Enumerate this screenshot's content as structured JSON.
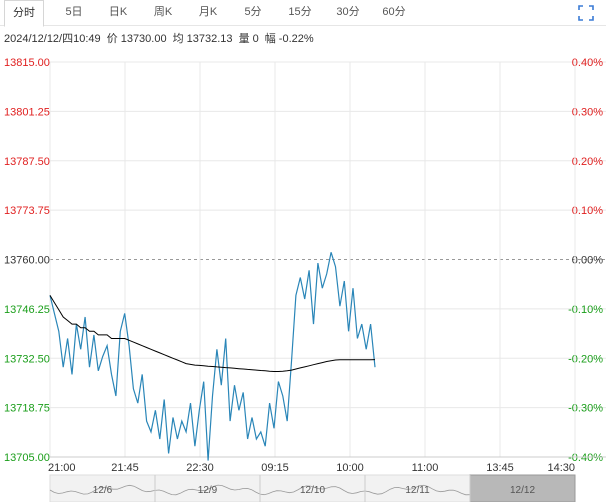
{
  "tabs": [
    {
      "label": "分时",
      "active": true
    },
    {
      "label": "5日",
      "active": false
    },
    {
      "label": "日K",
      "active": false
    },
    {
      "label": "周K",
      "active": false
    },
    {
      "label": "月K",
      "active": false
    },
    {
      "label": "5分",
      "active": false
    },
    {
      "label": "15分",
      "active": false
    },
    {
      "label": "30分",
      "active": false
    },
    {
      "label": "60分",
      "active": false
    }
  ],
  "toolbar": {
    "expand_icon": "expand-icon"
  },
  "info": {
    "datetime": "2024/12/12/四10:49",
    "price_label": "价",
    "price": "13730.00",
    "avg_label": "均",
    "avg": "13732.13",
    "volume_label": "量",
    "volume": "0",
    "change_label": "幅",
    "change": "-0.22%"
  },
  "colors": {
    "up": "#e02020",
    "down": "#1a9e1a",
    "neutral": "#333333",
    "price_line": "#2a86b8",
    "avg_line": "#000000"
  },
  "chart_data": {
    "type": "line",
    "y_left_ticks": [
      "13815.00",
      "13801.25",
      "13787.50",
      "13773.75",
      "13760.00",
      "13746.25",
      "13732.50",
      "13718.75",
      "13705.00"
    ],
    "y_right_ticks": [
      "0.40%",
      "0.30%",
      "0.20%",
      "0.10%",
      "0.00%",
      "-0.10%",
      "-0.20%",
      "-0.30%",
      "-0.40%"
    ],
    "ylim": [
      13705.0,
      13815.0
    ],
    "prev_close": 13760.0,
    "x_ticks": [
      "21:00",
      "21:45",
      "22:30",
      "09:15",
      "10:00",
      "11:00",
      "13:45",
      "14:30"
    ],
    "x_count": 75,
    "price": [
      13750,
      13745,
      13740,
      13730,
      13738,
      13728,
      13742,
      13735,
      13744,
      13730,
      13739,
      13729,
      13733,
      13736,
      13728,
      13722,
      13740,
      13745,
      13736,
      13724,
      13720,
      13728,
      13715,
      13712,
      13718,
      13710,
      13721,
      13706,
      13716,
      13710,
      13715,
      13712,
      13720,
      13708,
      13718,
      13726,
      13704,
      13722,
      13735,
      13725,
      13738,
      13715,
      13725,
      13718,
      13723,
      13710,
      13716,
      13710,
      13712,
      13708,
      13720,
      13713,
      13726,
      13722,
      13715,
      13732,
      13750,
      13755,
      13749,
      13757,
      13742,
      13759,
      13752,
      13756,
      13762,
      13758,
      13747,
      13754,
      13740,
      13752,
      13738,
      13742,
      13735,
      13742,
      13730
    ],
    "average": [
      13750,
      13748,
      13746,
      13744,
      13743,
      13742,
      13742,
      13741,
      13741,
      13740,
      13740,
      13739,
      13739,
      13739,
      13738,
      13738,
      13738,
      13738,
      13737.5,
      13737,
      13736.5,
      13736,
      13735.5,
      13735,
      13734.5,
      13734,
      13733.5,
      13733,
      13732.5,
      13732,
      13731.5,
      13731,
      13730.8,
      13730.6,
      13730.5,
      13730.4,
      13730.3,
      13730.2,
      13730.1,
      13730,
      13729.9,
      13729.8,
      13729.7,
      13729.6,
      13729.5,
      13729.4,
      13729.3,
      13729.2,
      13729.1,
      13729,
      13728.9,
      13728.8,
      13728.8,
      13728.9,
      13729,
      13729.2,
      13729.5,
      13729.8,
      13730.1,
      13730.4,
      13730.7,
      13731,
      13731.3,
      13731.6,
      13731.8,
      13732,
      13732.1,
      13732.1,
      13732.1,
      13732.1,
      13732.1,
      13732.1,
      13732.1,
      13732.1,
      13732.13
    ]
  },
  "navigator": {
    "labels": [
      "12/6",
      "12/9",
      "12/10",
      "12/11",
      "12/12"
    ],
    "selected_index": 4
  }
}
